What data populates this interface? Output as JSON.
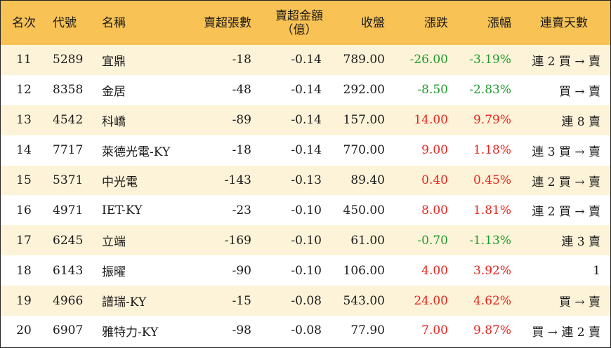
{
  "colors": {
    "header_bg": "#f8c254",
    "row_alt_bg": "#fdf3d8",
    "up": "#e8231c",
    "down": "#1e9a2c"
  },
  "columns": {
    "rank": "名次",
    "code": "代號",
    "name": "名稱",
    "net_sell_lots": "賣超張數",
    "net_sell_amount_line1": "賣超金額",
    "net_sell_amount_line2": "（億）",
    "close": "收盤",
    "change": "漲跌",
    "change_pct": "漲幅",
    "streak": "連賣天數"
  },
  "rows": [
    {
      "rank": "11",
      "code": "5289",
      "name": "宜鼎",
      "lots": "-18",
      "amount": "-0.14",
      "close": "789.00",
      "change": "-26.00",
      "pct": "-3.19%",
      "streak": "連 2 買 → 賣",
      "dir": "down"
    },
    {
      "rank": "12",
      "code": "8358",
      "name": "金居",
      "lots": "-48",
      "amount": "-0.14",
      "close": "292.00",
      "change": "-8.50",
      "pct": "-2.83%",
      "streak": "買 → 賣",
      "dir": "down"
    },
    {
      "rank": "13",
      "code": "4542",
      "name": "科嶠",
      "lots": "-89",
      "amount": "-0.14",
      "close": "157.00",
      "change": "14.00",
      "pct": "9.79%",
      "streak": "連 8 賣",
      "dir": "up"
    },
    {
      "rank": "14",
      "code": "7717",
      "name": "萊德光電-KY",
      "lots": "-18",
      "amount": "-0.14",
      "close": "770.00",
      "change": "9.00",
      "pct": "1.18%",
      "streak": "連 3 買 → 賣",
      "dir": "up"
    },
    {
      "rank": "15",
      "code": "5371",
      "name": "中光電",
      "lots": "-143",
      "amount": "-0.13",
      "close": "89.40",
      "change": "0.40",
      "pct": "0.45%",
      "streak": "連 2 買 → 賣",
      "dir": "up"
    },
    {
      "rank": "16",
      "code": "4971",
      "name": "IET-KY",
      "lots": "-23",
      "amount": "-0.10",
      "close": "450.00",
      "change": "8.00",
      "pct": "1.81%",
      "streak": "連 2 買 → 賣",
      "dir": "up"
    },
    {
      "rank": "17",
      "code": "6245",
      "name": "立端",
      "lots": "-169",
      "amount": "-0.10",
      "close": "61.00",
      "change": "-0.70",
      "pct": "-1.13%",
      "streak": "連 3 賣",
      "dir": "down"
    },
    {
      "rank": "18",
      "code": "6143",
      "name": "振曜",
      "lots": "-90",
      "amount": "-0.10",
      "close": "106.00",
      "change": "4.00",
      "pct": "3.92%",
      "streak": "1",
      "dir": "up"
    },
    {
      "rank": "19",
      "code": "4966",
      "name": "譜瑞-KY",
      "lots": "-15",
      "amount": "-0.08",
      "close": "543.00",
      "change": "24.00",
      "pct": "4.62%",
      "streak": "買 → 賣",
      "dir": "up"
    },
    {
      "rank": "20",
      "code": "6907",
      "name": "雅特力-KY",
      "lots": "-98",
      "amount": "-0.08",
      "close": "77.90",
      "change": "7.00",
      "pct": "9.87%",
      "streak": "買 → 連 2 賣",
      "dir": "up"
    }
  ]
}
